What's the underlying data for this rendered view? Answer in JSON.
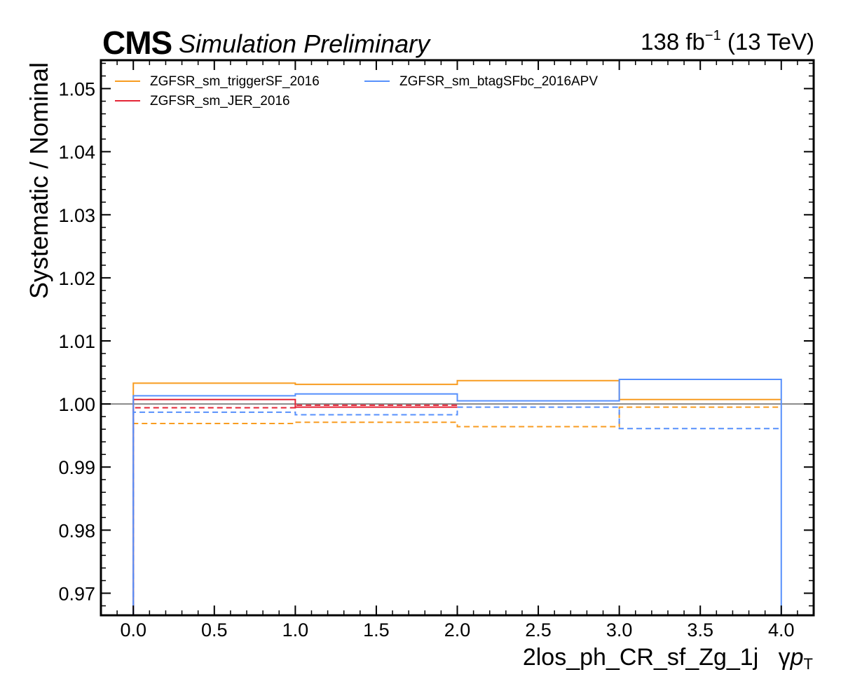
{
  "header": {
    "cms": "CMS",
    "subtitle": "Simulation Preliminary",
    "lumi_value": "138 fb",
    "lumi_exp": "−1",
    "lumi_energy": " (13 TeV)"
  },
  "chart_data": {
    "type": "line",
    "drawstyle": "step",
    "xlabel": "2los_ph_CR_sf_Zg_1j",
    "xlabel_var": "γ",
    "xlabel_var_p": "p",
    "xlabel_var_sub": "T",
    "ylabel": "Systematic / Nominal",
    "xlim": [
      -0.2,
      4.2
    ],
    "ylim": [
      0.9665,
      1.0545
    ],
    "x_ticks": [
      0.0,
      0.5,
      1.0,
      1.5,
      2.0,
      2.5,
      3.0,
      3.5,
      4.0
    ],
    "x_tick_labels": [
      "0.0",
      "0.5",
      "1.0",
      "1.5",
      "2.0",
      "2.5",
      "3.0",
      "3.5",
      "4.0"
    ],
    "y_ticks": [
      0.97,
      0.98,
      0.99,
      1.0,
      1.01,
      1.02,
      1.03,
      1.04,
      1.05
    ],
    "y_tick_labels": [
      "0.97",
      "0.98",
      "0.99",
      "1.00",
      "1.01",
      "1.02",
      "1.03",
      "1.04",
      "1.05"
    ],
    "reference_line": {
      "y": 1.0,
      "color": "#888888"
    },
    "bin_edges": [
      0,
      1,
      2,
      3,
      4
    ],
    "legend_position": "top-left",
    "series": [
      {
        "name": "ZGFSR_sm_triggerSF_2016",
        "color": "#f89c20",
        "variation": "up",
        "values": [
          1.0033,
          1.0031,
          1.0037,
          1.0007
        ]
      },
      {
        "name": "",
        "color": "#f89c20",
        "variation": "down",
        "values": [
          0.9969,
          0.9971,
          0.9964,
          0.9995
        ]
      },
      {
        "name": "ZGFSR_sm_JER_2016",
        "color": "#e42536",
        "variation": "up",
        "values": [
          1.0007,
          0.9995,
          null,
          null
        ]
      },
      {
        "name": "",
        "color": "#e42536",
        "variation": "down",
        "values": [
          0.9994,
          0.9998,
          null,
          null
        ]
      },
      {
        "name": "ZGFSR_sm_btagSFbc_2016APV",
        "color": "#5790fc",
        "variation": "up",
        "values": [
          1.0013,
          1.0016,
          1.0005,
          1.0039
        ]
      },
      {
        "name": "",
        "color": "#5790fc",
        "variation": "down",
        "values": [
          0.9987,
          0.9983,
          0.9995,
          0.9961
        ]
      }
    ]
  }
}
